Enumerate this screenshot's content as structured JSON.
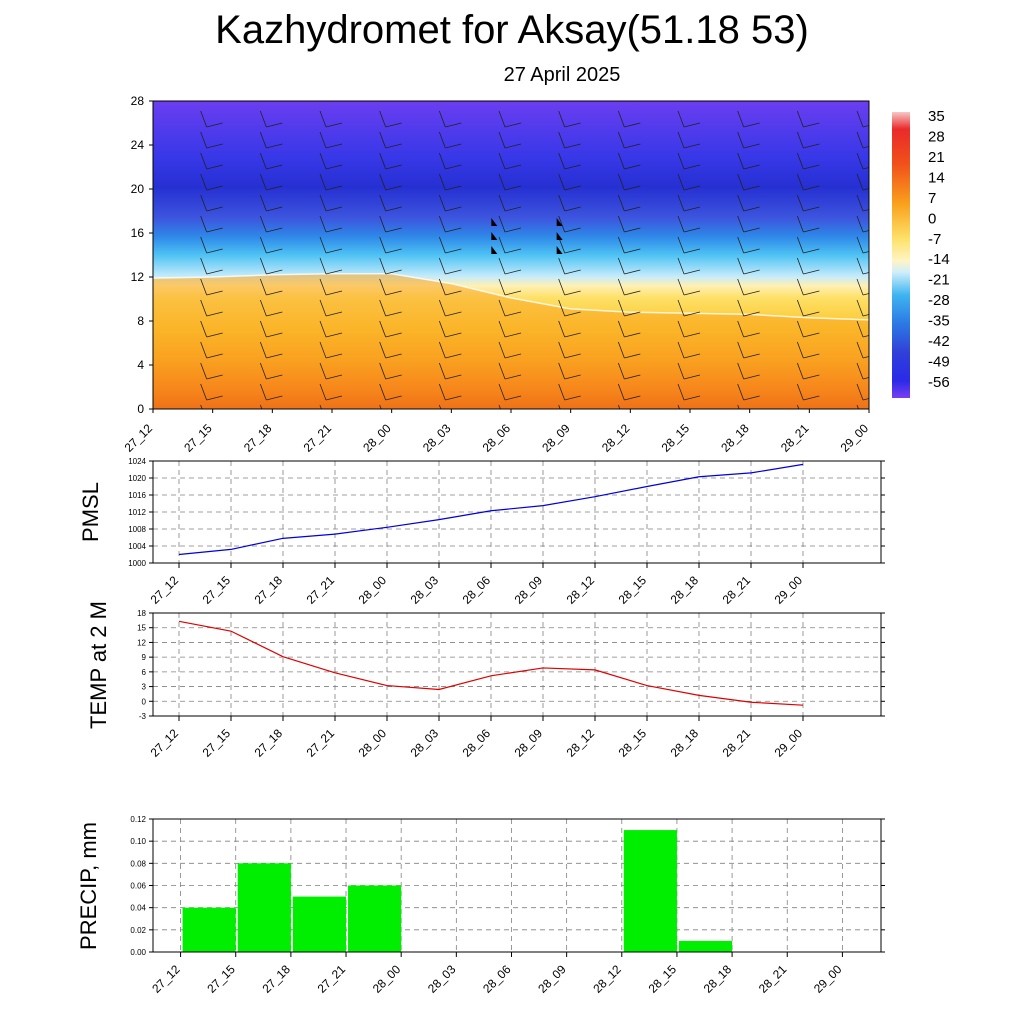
{
  "title": "Kazhydromet for Aksay(51.18 53)",
  "subtitle": "27 April 2025",
  "colors": {
    "pmsl_line": "#0000e0",
    "temp_line": "#e00000",
    "precip_bar": "#00ee00",
    "grid": "#808080"
  },
  "chart_data": [
    {
      "type": "heatmap",
      "title": "",
      "x_ticks": [
        "27_12",
        "27_15",
        "27_18",
        "27_21",
        "28_00",
        "28_03",
        "28_06",
        "28_09",
        "28_12",
        "28_15",
        "28_18",
        "28_21",
        "29_00"
      ],
      "y_ticks": [
        0,
        4,
        8,
        12,
        16,
        20,
        24,
        28
      ],
      "ylim": [
        0,
        28
      ],
      "colorbar_labels": [
        35,
        28,
        21,
        14,
        7,
        0,
        -7,
        -14,
        -21,
        -28,
        -35,
        -42,
        -49,
        -56
      ],
      "freezing_level_km": [
        11.9,
        12.0,
        12.2,
        12.3,
        12.3,
        11.4,
        10.1,
        9.1,
        8.8,
        8.7,
        8.6,
        8.3,
        8.1
      ],
      "wind_barbs": "present",
      "legend": "right"
    },
    {
      "type": "line",
      "ylabel": "PMSL",
      "x": [
        "27_12",
        "27_15",
        "27_18",
        "27_21",
        "28_00",
        "28_03",
        "28_06",
        "28_09",
        "28_12",
        "28_15",
        "28_18",
        "28_21",
        "29_00"
      ],
      "series": [
        {
          "values": [
            1002.0,
            1003.2,
            1005.8,
            1006.8,
            1008.4,
            1010.2,
            1012.3,
            1013.5,
            1015.6,
            1018.0,
            1020.3,
            1021.2,
            1023.2
          ]
        }
      ],
      "y_ticks": [
        1000,
        1004,
        1008,
        1012,
        1016,
        1020,
        1024
      ],
      "ylim": [
        1000,
        1024
      ],
      "grid": true
    },
    {
      "type": "line",
      "ylabel": "TEMP at 2 M",
      "x": [
        "27_12",
        "27_15",
        "27_18",
        "27_21",
        "28_00",
        "28_03",
        "28_06",
        "28_09",
        "28_12",
        "28_15",
        "28_18",
        "28_21",
        "29_00"
      ],
      "series": [
        {
          "values": [
            16.3,
            14.3,
            9.1,
            5.8,
            3.2,
            2.4,
            5.2,
            6.8,
            6.4,
            3.2,
            1.2,
            -0.2,
            -0.8
          ]
        }
      ],
      "y_ticks": [
        -3,
        0,
        3,
        6,
        9,
        12,
        15,
        18
      ],
      "ylim": [
        -3,
        18
      ],
      "grid": true
    },
    {
      "type": "bar",
      "ylabel": "PRECIP, mm",
      "categories": [
        "27_12",
        "27_15",
        "27_18",
        "27_21",
        "28_00",
        "28_03",
        "28_06",
        "28_09",
        "28_12",
        "28_15",
        "28_18",
        "28_21",
        "29_00"
      ],
      "values": [
        0,
        0.04,
        0.08,
        0.05,
        0.06,
        0,
        0,
        0,
        0,
        0.11,
        0.01,
        0,
        0
      ],
      "y_ticks": [
        "0.00",
        "0.02",
        "0.04",
        "0.06",
        "0.08",
        "0.10",
        "0.12"
      ],
      "ylim": [
        0,
        0.12
      ],
      "grid": true
    }
  ]
}
